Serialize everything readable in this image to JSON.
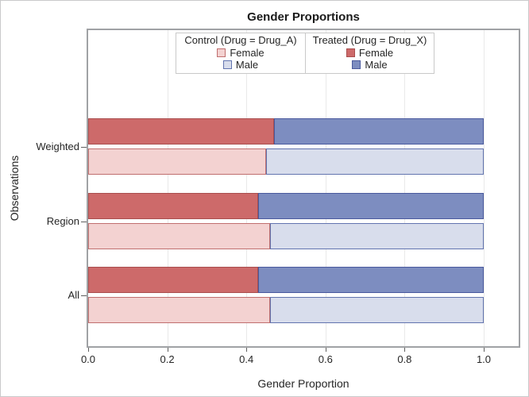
{
  "window": {
    "background": "#FFFFFF",
    "border_color": "#C9CACB"
  },
  "chart_data": {
    "type": "bar",
    "orientation": "horizontal",
    "stacked": true,
    "title": "Gender Proportions",
    "xlabel": "Gender Proportion",
    "ylabel": "Observations",
    "xlim": [
      0,
      1.1
    ],
    "xticks": [
      "0.0",
      "0.2",
      "0.4",
      "0.6",
      "0.8",
      "1.0"
    ],
    "xtick_values": [
      0,
      0.2,
      0.4,
      0.6,
      0.8,
      1.0
    ],
    "grid": "vertical",
    "grid_color": "#E9E9E9",
    "categories": [
      "Weighted",
      "Region",
      "All"
    ],
    "bar_groups": [
      {
        "name": "Treated (Drug = Drug_X)",
        "row": "upper",
        "segments": [
          {
            "label": "Female",
            "fill": "#CD6A6A",
            "border": "#A94E4E",
            "values": [
              0.47,
              0.43,
              0.43
            ]
          },
          {
            "label": "Male",
            "fill": "#7D8DC0",
            "border": "#4A5A9E",
            "values": [
              0.53,
              0.57,
              0.57
            ]
          }
        ]
      },
      {
        "name": "Control (Drug = Drug_A)",
        "row": "lower",
        "segments": [
          {
            "label": "Female",
            "fill": "#F3D2D1",
            "border": "#C06F6F",
            "values": [
              0.45,
              0.46,
              0.46
            ]
          },
          {
            "label": "Male",
            "fill": "#D8DDEC",
            "border": "#6274AF",
            "values": [
              0.55,
              0.54,
              0.54
            ]
          }
        ]
      }
    ],
    "legend": {
      "position": "top-inside",
      "panels": [
        {
          "title": "Control (Drug = Drug_A)",
          "items": [
            {
              "label": "Female",
              "fill": "#F3D2D1",
              "border": "#C06F6F"
            },
            {
              "label": "Male",
              "fill": "#D8DDEC",
              "border": "#6274AF"
            }
          ]
        },
        {
          "title": "Treated (Drug = Drug_X)",
          "items": [
            {
              "label": "Female",
              "fill": "#CD6A6A",
              "border": "#A94E4E"
            },
            {
              "label": "Male",
              "fill": "#7D8DC0",
              "border": "#4A5A9E"
            }
          ]
        }
      ]
    }
  }
}
